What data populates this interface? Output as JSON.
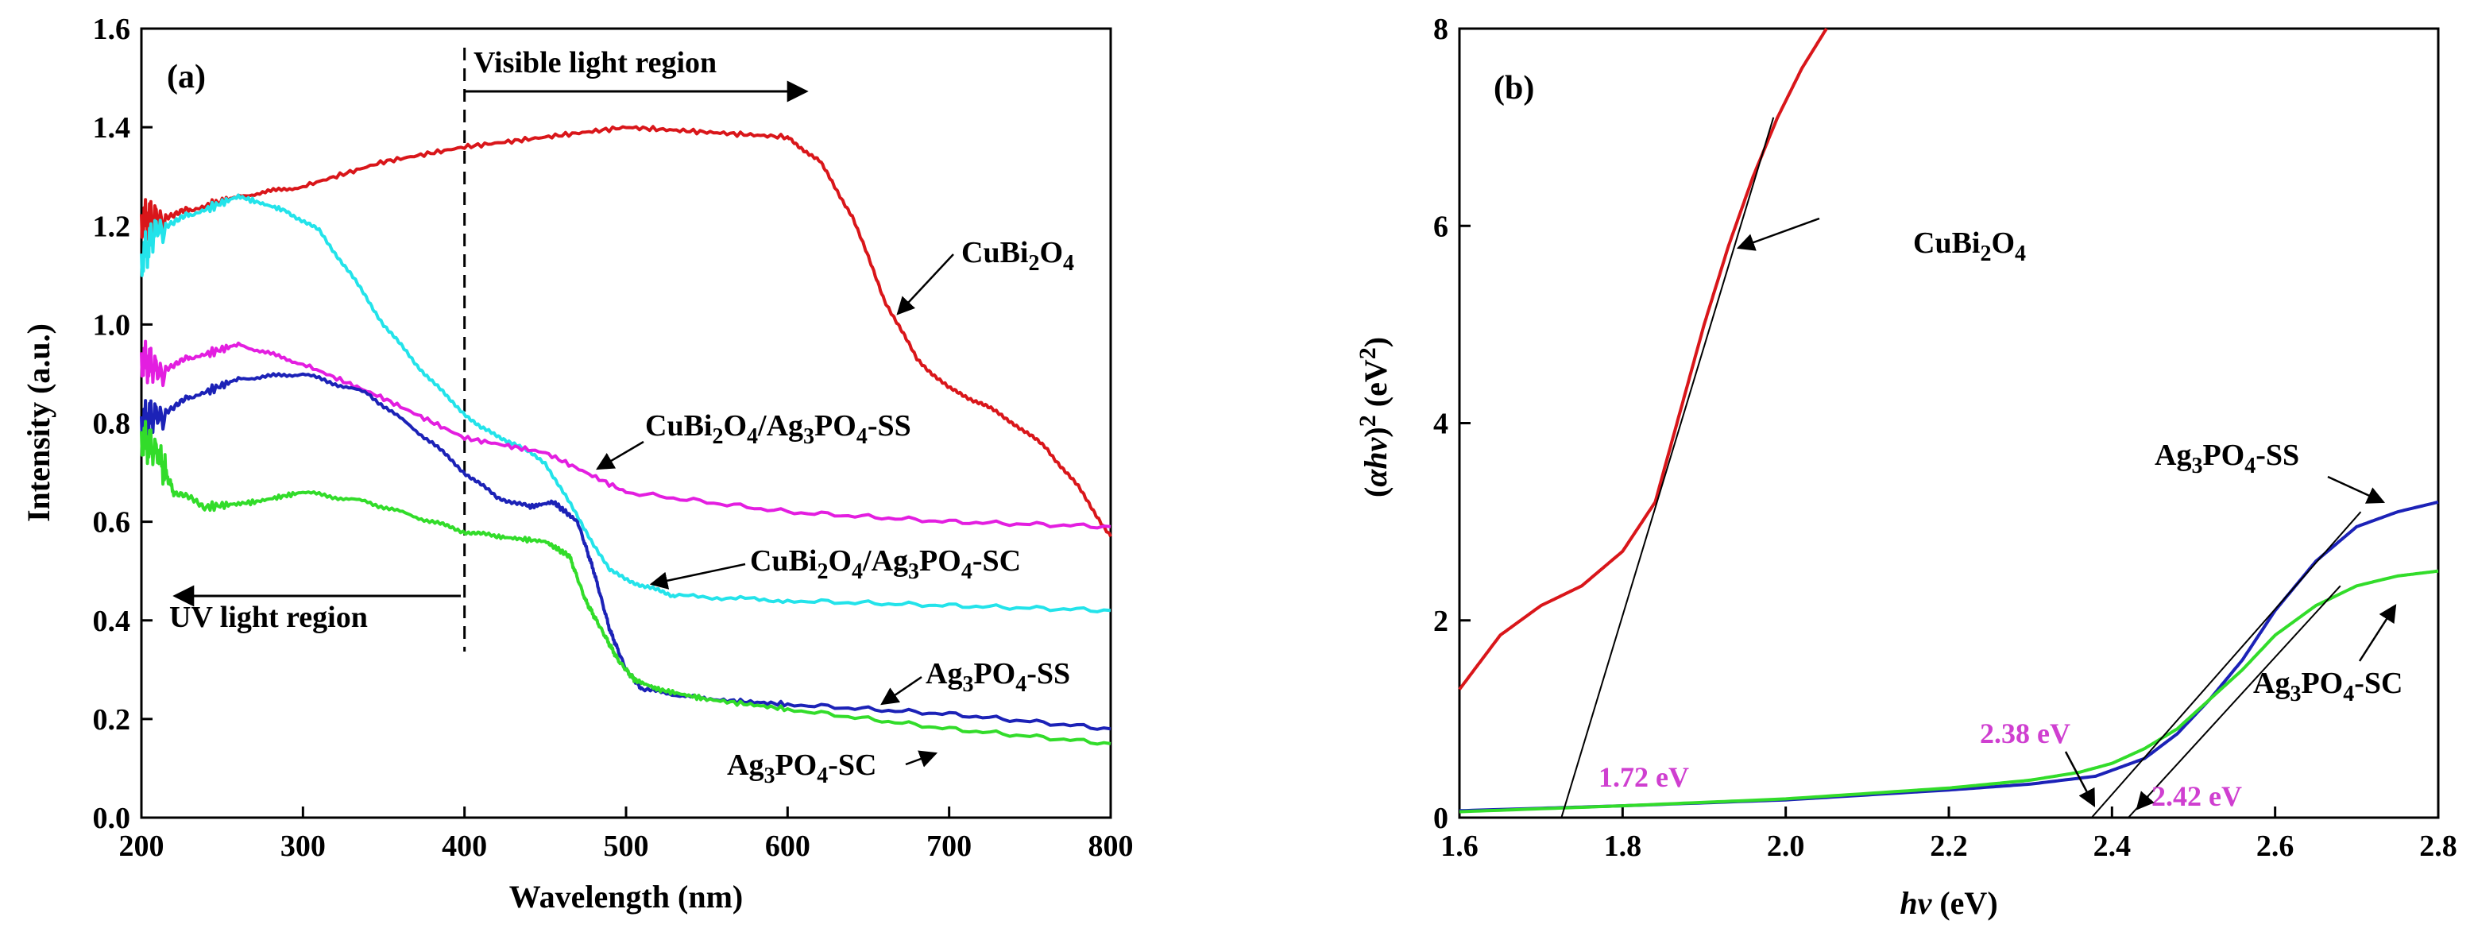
{
  "chart_data": [
    {
      "panel": "(a)",
      "type": "line",
      "xlabel": "Wavelength (nm)",
      "ylabel": "Intensity (a.u.)",
      "xlim": [
        200,
        800
      ],
      "ylim": [
        0.0,
        1.6
      ],
      "xticks": [
        "200",
        "300",
        "400",
        "500",
        "600",
        "700",
        "800"
      ],
      "yticks": [
        "0.0",
        "0.2",
        "0.4",
        "0.6",
        "0.8",
        "1.0",
        "1.2",
        "1.4",
        "1.6"
      ],
      "divider_x": 400,
      "region_labels": {
        "visible": "Visible light region",
        "uv": "UV light region"
      },
      "series": [
        {
          "name": "CuBi2O4",
          "color": "#d9161a",
          "x": [
            200,
            210,
            230,
            260,
            300,
            350,
            400,
            450,
            500,
            550,
            600,
            620,
            640,
            660,
            680,
            700,
            720,
            740,
            760,
            780,
            800
          ],
          "y": [
            1.21,
            1.22,
            1.23,
            1.26,
            1.28,
            1.33,
            1.36,
            1.38,
            1.4,
            1.39,
            1.38,
            1.33,
            1.22,
            1.05,
            0.93,
            0.87,
            0.84,
            0.8,
            0.75,
            0.67,
            0.57
          ]
        },
        {
          "name": "CuBi2O4/Ag3PO4-SC",
          "color": "#23e3ea",
          "x": [
            200,
            210,
            230,
            260,
            290,
            310,
            330,
            350,
            370,
            390,
            410,
            430,
            450,
            470,
            490,
            510,
            530,
            600,
            700,
            800
          ],
          "y": [
            1.13,
            1.2,
            1.22,
            1.26,
            1.23,
            1.19,
            1.1,
            1.0,
            0.92,
            0.85,
            0.79,
            0.76,
            0.72,
            0.61,
            0.5,
            0.47,
            0.45,
            0.44,
            0.43,
            0.42
          ]
        },
        {
          "name": "CuBi2O4/Ag3PO4-SS",
          "color": "#e31ee0",
          "x": [
            200,
            210,
            230,
            260,
            300,
            350,
            400,
            450,
            500,
            600,
            700,
            800
          ],
          "y": [
            0.93,
            0.91,
            0.93,
            0.96,
            0.92,
            0.85,
            0.77,
            0.74,
            0.66,
            0.62,
            0.6,
            0.59
          ]
        },
        {
          "name": "Ag3PO4-SS",
          "color": "#1c22b7",
          "x": [
            200,
            210,
            230,
            260,
            300,
            340,
            380,
            400,
            420,
            440,
            455,
            470,
            480,
            490,
            500,
            510,
            550,
            600,
            700,
            800
          ],
          "y": [
            0.8,
            0.82,
            0.85,
            0.89,
            0.9,
            0.86,
            0.76,
            0.7,
            0.65,
            0.63,
            0.64,
            0.6,
            0.5,
            0.38,
            0.3,
            0.26,
            0.24,
            0.23,
            0.21,
            0.18
          ]
        },
        {
          "name": "Ag3PO4-SC",
          "color": "#32dc2a",
          "x": [
            200,
            210,
            220,
            240,
            270,
            300,
            340,
            380,
            400,
            420,
            450,
            465,
            475,
            485,
            495,
            505,
            520,
            550,
            600,
            700,
            800
          ],
          "y": [
            0.77,
            0.74,
            0.66,
            0.63,
            0.64,
            0.66,
            0.64,
            0.6,
            0.58,
            0.57,
            0.56,
            0.53,
            0.44,
            0.38,
            0.32,
            0.28,
            0.26,
            0.24,
            0.22,
            0.18,
            0.15
          ]
        }
      ],
      "annotations": [
        {
          "text": "CuBi2O4",
          "target": [
            665,
            1.04
          ]
        },
        {
          "text": "CuBi2O4/Ag3PO4-SS",
          "target": [
            485,
            0.7
          ]
        },
        {
          "text": "CuBi2O4/Ag3PO4-SC",
          "target": [
            520,
            0.47
          ]
        },
        {
          "text": "Ag3PO4-SS",
          "target": [
            655,
            0.22
          ]
        },
        {
          "text": "Ag3PO4-SC",
          "target": [
            700,
            0.16
          ]
        }
      ]
    },
    {
      "panel": "(b)",
      "type": "line",
      "xlabel": "hv (eV)",
      "ylabel": "(αhv)² (eV²)",
      "xlim": [
        1.6,
        2.8
      ],
      "ylim": [
        0,
        8
      ],
      "xticks": [
        "1.6",
        "1.8",
        "2.0",
        "2.2",
        "2.4",
        "2.6",
        "2.8"
      ],
      "yticks": [
        "0",
        "2",
        "4",
        "6",
        "8"
      ],
      "series": [
        {
          "name": "CuBi2O4",
          "color": "#d9161a",
          "x": [
            1.6,
            1.65,
            1.7,
            1.75,
            1.8,
            1.84,
            1.87,
            1.9,
            1.93,
            1.96,
            1.99,
            2.02,
            2.05
          ],
          "y": [
            1.3,
            1.85,
            2.15,
            2.35,
            2.7,
            3.2,
            4.1,
            5.0,
            5.8,
            6.5,
            7.1,
            7.6,
            8.0
          ]
        },
        {
          "name": "Ag3PO4-SS",
          "color": "#1c22b7",
          "x": [
            1.6,
            1.8,
            2.0,
            2.2,
            2.3,
            2.38,
            2.44,
            2.48,
            2.52,
            2.56,
            2.6,
            2.65,
            2.7,
            2.75,
            2.8
          ],
          "y": [
            0.07,
            0.12,
            0.18,
            0.28,
            0.34,
            0.42,
            0.6,
            0.85,
            1.2,
            1.6,
            2.1,
            2.6,
            2.95,
            3.1,
            3.2
          ]
        },
        {
          "name": "Ag3PO4-SC",
          "color": "#32dc2a",
          "x": [
            1.6,
            1.8,
            2.0,
            2.2,
            2.3,
            2.36,
            2.4,
            2.44,
            2.48,
            2.52,
            2.56,
            2.6,
            2.65,
            2.7,
            2.75,
            2.8
          ],
          "y": [
            0.06,
            0.12,
            0.19,
            0.3,
            0.38,
            0.46,
            0.55,
            0.7,
            0.9,
            1.2,
            1.5,
            1.85,
            2.15,
            2.35,
            2.45,
            2.5
          ]
        }
      ],
      "tangents": [
        {
          "from": [
            1.725,
            0
          ],
          "to": [
            1.985,
            7.1
          ]
        },
        {
          "from": [
            2.375,
            0
          ],
          "to": [
            2.705,
            3.1
          ]
        },
        {
          "from": [
            2.42,
            0
          ],
          "to": [
            2.68,
            2.35
          ]
        }
      ],
      "band_gaps": [
        {
          "text": "1.72 eV",
          "color": "#cf3fd0"
        },
        {
          "text": "2.38 eV",
          "color": "#cf3fd0"
        },
        {
          "text": "2.42 eV",
          "color": "#cf3fd0"
        }
      ],
      "annotations": [
        {
          "text": "CuBi2O4"
        },
        {
          "text": "Ag3PO4-SS"
        },
        {
          "text": "Ag3PO4-SC"
        }
      ]
    }
  ]
}
